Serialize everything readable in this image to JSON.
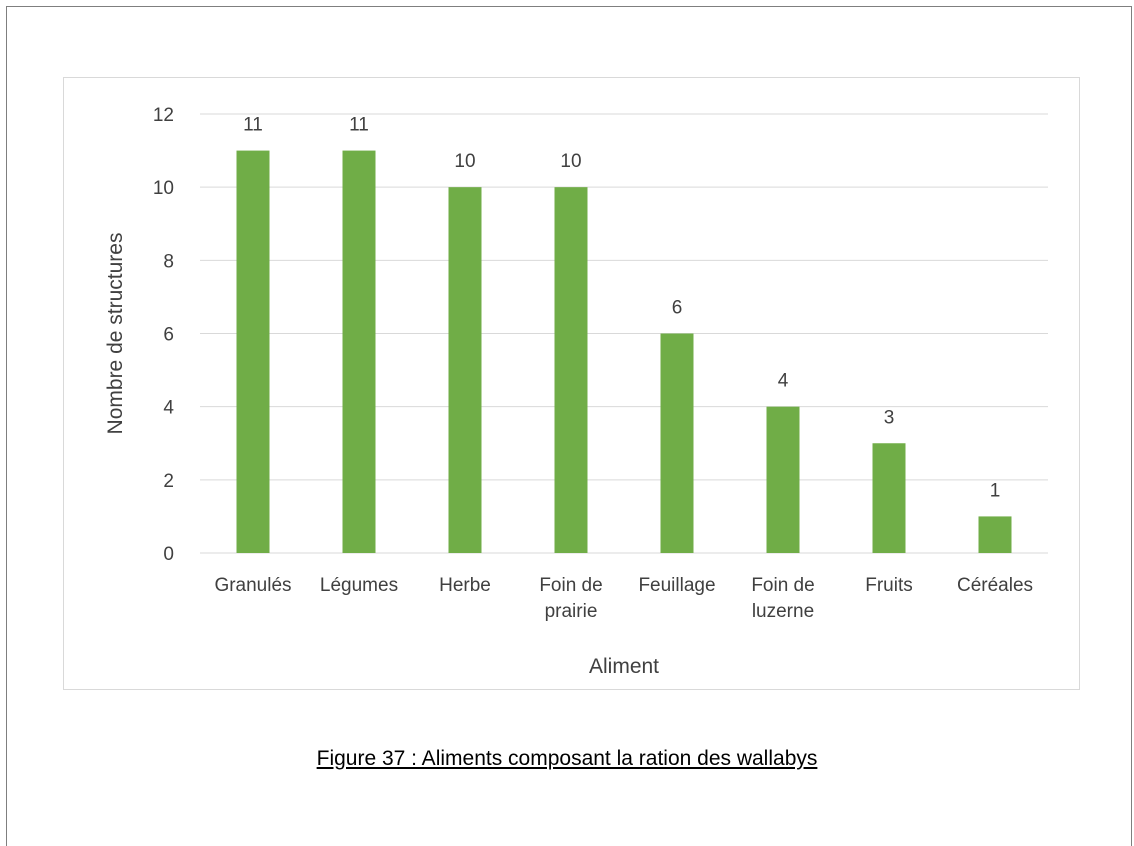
{
  "caption": "Figure 37 : Aliments composant la ration des wallabys",
  "chart_data": {
    "type": "bar",
    "categories": [
      [
        "Granulés"
      ],
      [
        "Légumes"
      ],
      [
        "Herbe"
      ],
      [
        "Foin de",
        "prairie"
      ],
      [
        "Feuillage"
      ],
      [
        "Foin de",
        "luzerne"
      ],
      [
        "Fruits"
      ],
      [
        "Céréales"
      ]
    ],
    "values": [
      11,
      11,
      10,
      10,
      6,
      4,
      3,
      1
    ],
    "title": "",
    "xlabel": "Aliment",
    "ylabel": "Nombre de structures",
    "ylim": [
      0,
      12
    ],
    "yticks": [
      0,
      2,
      4,
      6,
      8,
      10,
      12
    ],
    "grid": true,
    "data_labels": true,
    "colors": {
      "bar": "#70ad47",
      "grid": "#d9d9d9",
      "text": "#404040"
    }
  }
}
